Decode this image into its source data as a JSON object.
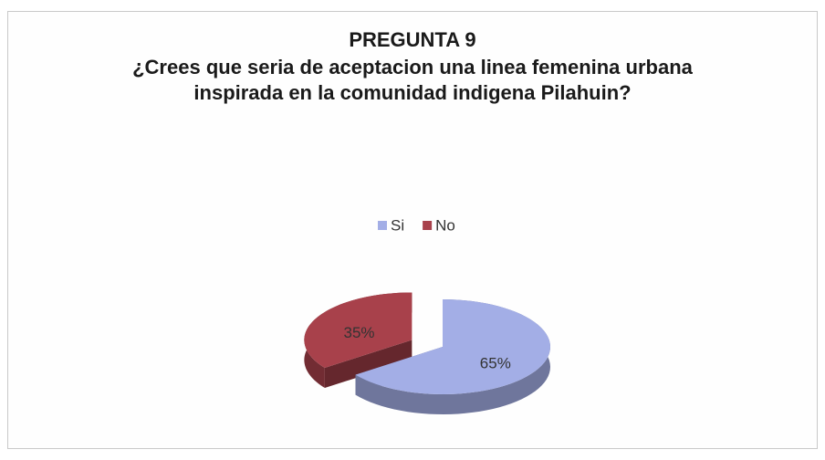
{
  "chart_data": {
    "type": "pie3d",
    "title": "PREGUNTA 9",
    "subtitle": "¿Crees que seria de aceptacion una linea femenina urbana inspirada en la comunidad indigena Pilahuin?",
    "categories": [
      "Si",
      "No"
    ],
    "values": [
      65,
      35
    ],
    "value_labels": [
      "65%",
      "35%"
    ],
    "colors": [
      "#a3aee6",
      "#a8414b"
    ],
    "legend": "top"
  }
}
